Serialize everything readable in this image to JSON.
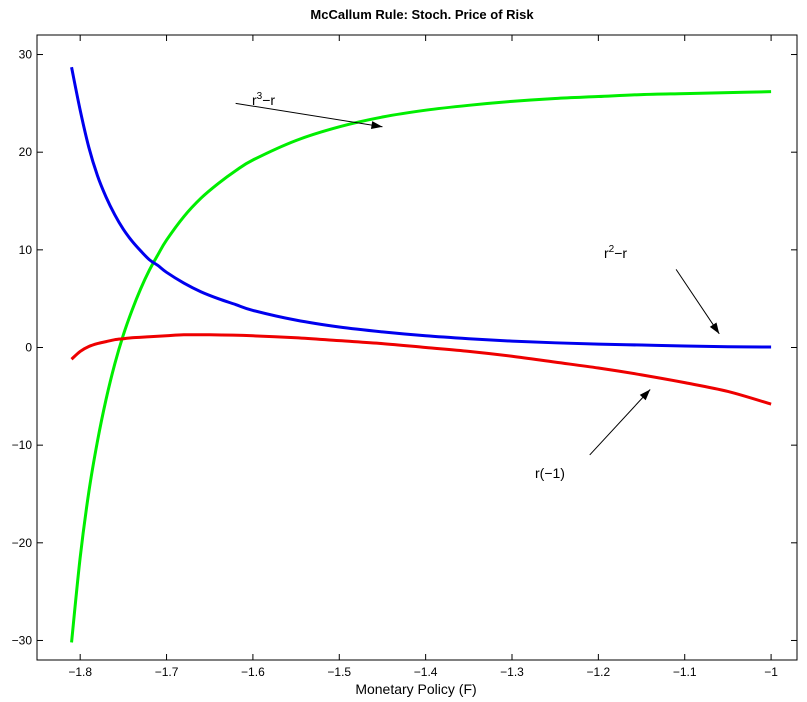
{
  "chart_data": {
    "type": "line",
    "title": "McCallum Rule:  Stoch. Price of Risk",
    "xlabel": "Monetary Policy (F)",
    "ylabel": "",
    "xlim": [
      -1.85,
      -0.97
    ],
    "ylim": [
      -32,
      32
    ],
    "xticks": [
      -1.8,
      -1.7,
      -1.6,
      -1.5,
      -1.4,
      -1.3,
      -1.2,
      -1.1,
      -1.0
    ],
    "xtick_labels": [
      "−1.8",
      "−1.7",
      "−1.6",
      "−1.5",
      "−1.4",
      "−1.3",
      "−1.2",
      "−1.1",
      "−1"
    ],
    "yticks": [
      -30,
      -20,
      -10,
      0,
      10,
      20,
      30
    ],
    "ytick_labels": [
      "−30",
      "−20",
      "−10",
      "0",
      "10",
      "20",
      "30"
    ],
    "grid": false,
    "legend": "none",
    "series": [
      {
        "color": "#00ee00",
        "x": [
          -1.81,
          -1.8,
          -1.79,
          -1.78,
          -1.77,
          -1.76,
          -1.75,
          -1.74,
          -1.73,
          -1.72,
          -1.71,
          -1.7,
          -1.68,
          -1.66,
          -1.64,
          -1.62,
          -1.6,
          -1.55,
          -1.5,
          -1.45,
          -1.4,
          -1.35,
          -1.3,
          -1.25,
          -1.2,
          -1.15,
          -1.1,
          -1.05,
          -1.0
        ],
        "y": [
          -30.2,
          -21.5,
          -14.8,
          -9.6,
          -5.3,
          -1.7,
          1.3,
          3.8,
          6.0,
          7.9,
          9.5,
          11.0,
          13.4,
          15.3,
          16.8,
          18.1,
          19.2,
          21.2,
          22.6,
          23.6,
          24.3,
          24.8,
          25.2,
          25.5,
          25.7,
          25.9,
          26.0,
          26.1,
          26.2
        ]
      },
      {
        "color": "#0000ee",
        "x": [
          -1.81,
          -1.8,
          -1.79,
          -1.78,
          -1.77,
          -1.76,
          -1.75,
          -1.74,
          -1.73,
          -1.72,
          -1.71,
          -1.7,
          -1.68,
          -1.66,
          -1.64,
          -1.62,
          -1.6,
          -1.55,
          -1.5,
          -1.45,
          -1.4,
          -1.35,
          -1.3,
          -1.25,
          -1.2,
          -1.15,
          -1.1,
          -1.05,
          -1.0
        ],
        "y": [
          28.7,
          24.3,
          20.5,
          17.6,
          15.4,
          13.6,
          12.1,
          10.9,
          9.9,
          9.0,
          8.4,
          7.7,
          6.6,
          5.7,
          5.0,
          4.4,
          3.8,
          2.8,
          2.1,
          1.6,
          1.2,
          0.9,
          0.65,
          0.48,
          0.35,
          0.25,
          0.15,
          0.08,
          0.05
        ]
      },
      {
        "color": "#ee0000",
        "x": [
          -1.81,
          -1.8,
          -1.79,
          -1.78,
          -1.77,
          -1.76,
          -1.75,
          -1.74,
          -1.72,
          -1.7,
          -1.68,
          -1.65,
          -1.6,
          -1.55,
          -1.5,
          -1.45,
          -1.4,
          -1.35,
          -1.3,
          -1.25,
          -1.2,
          -1.15,
          -1.1,
          -1.05,
          -1.0
        ],
        "y": [
          -1.2,
          -0.4,
          0.1,
          0.4,
          0.6,
          0.8,
          0.9,
          1.0,
          1.1,
          1.2,
          1.3,
          1.3,
          1.2,
          1.0,
          0.7,
          0.4,
          0.0,
          -0.4,
          -0.9,
          -1.5,
          -2.1,
          -2.8,
          -3.6,
          -4.5,
          -5.8
        ]
      }
    ],
    "annotations": [
      {
        "text": "r³−r",
        "x": -1.71,
        "y": 24.5,
        "arrow_tail": [
          -1.62,
          25.0
        ],
        "arrow_head": [
          -1.45,
          22.6
        ]
      },
      {
        "text": "r²−r",
        "x": -1.16,
        "y": 9.5,
        "arrow_tail": [
          -1.11,
          8.0
        ],
        "arrow_head": [
          -1.06,
          1.4
        ]
      },
      {
        "text": "r(−1)",
        "x": -1.23,
        "y": -12.8,
        "arrow_tail": [
          -1.21,
          -11.0
        ],
        "arrow_head": [
          -1.14,
          -4.3
        ]
      }
    ]
  },
  "annotation_text": {
    "r3": {
      "base": "r",
      "sup": "3",
      "rest": "−r"
    },
    "r2": {
      "base": "r",
      "sup": "2",
      "rest": "−r"
    },
    "rm1": "r(−1)"
  }
}
